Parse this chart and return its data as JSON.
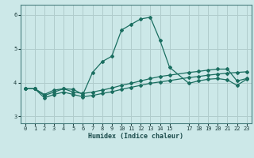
{
  "xlabel": "Humidex (Indice chaleur)",
  "bg_color": "#cce8e8",
  "grid_color": "#b0cccc",
  "line_color": "#1a6e60",
  "xlim": [
    -0.5,
    23.5
  ],
  "ylim": [
    2.8,
    6.3
  ],
  "yticks": [
    3,
    4,
    5,
    6
  ],
  "xticks": [
    0,
    1,
    2,
    3,
    4,
    5,
    6,
    7,
    8,
    9,
    10,
    11,
    12,
    13,
    14,
    15,
    17,
    18,
    19,
    20,
    21,
    22,
    23
  ],
  "xticklabels": [
    "0",
    "1",
    "2",
    "3",
    "4",
    "5",
    "6",
    "7",
    "8",
    "9",
    "10",
    "11",
    "12",
    "13",
    "14",
    "15",
    "17",
    "18",
    "19",
    "20",
    "21",
    "22",
    "23"
  ],
  "line1_x": [
    0,
    1,
    2,
    3,
    4,
    5,
    6,
    7,
    8,
    9,
    10,
    11,
    12,
    13,
    14,
    15,
    17,
    18,
    19,
    20,
    21,
    22,
    23
  ],
  "line1_y": [
    3.82,
    3.82,
    3.55,
    3.65,
    3.72,
    3.65,
    3.58,
    3.62,
    3.68,
    3.73,
    3.8,
    3.86,
    3.92,
    3.98,
    4.02,
    4.06,
    4.15,
    4.18,
    4.22,
    4.25,
    4.28,
    4.3,
    4.32
  ],
  "line2_x": [
    0,
    1,
    2,
    3,
    4,
    5,
    6,
    7,
    8,
    9,
    10,
    11,
    12,
    13,
    14,
    15,
    17,
    18,
    19,
    20,
    21,
    22,
    23
  ],
  "line2_y": [
    3.82,
    3.82,
    3.62,
    3.72,
    3.82,
    3.72,
    3.68,
    3.72,
    3.78,
    3.84,
    3.92,
    3.98,
    4.05,
    4.12,
    4.18,
    4.22,
    4.3,
    4.33,
    4.37,
    4.4,
    4.4,
    4.05,
    4.12
  ],
  "line3_x": [
    0,
    1,
    2,
    3,
    4,
    5,
    6,
    7,
    8,
    9,
    10,
    11,
    12,
    13,
    14,
    15,
    17,
    18,
    19,
    20,
    21,
    22,
    23
  ],
  "line3_y": [
    3.82,
    3.82,
    3.65,
    3.78,
    3.82,
    3.8,
    3.65,
    4.3,
    4.62,
    4.78,
    5.55,
    5.72,
    5.88,
    5.93,
    5.25,
    4.45,
    3.98,
    4.05,
    4.1,
    4.12,
    4.08,
    3.92,
    4.1
  ]
}
